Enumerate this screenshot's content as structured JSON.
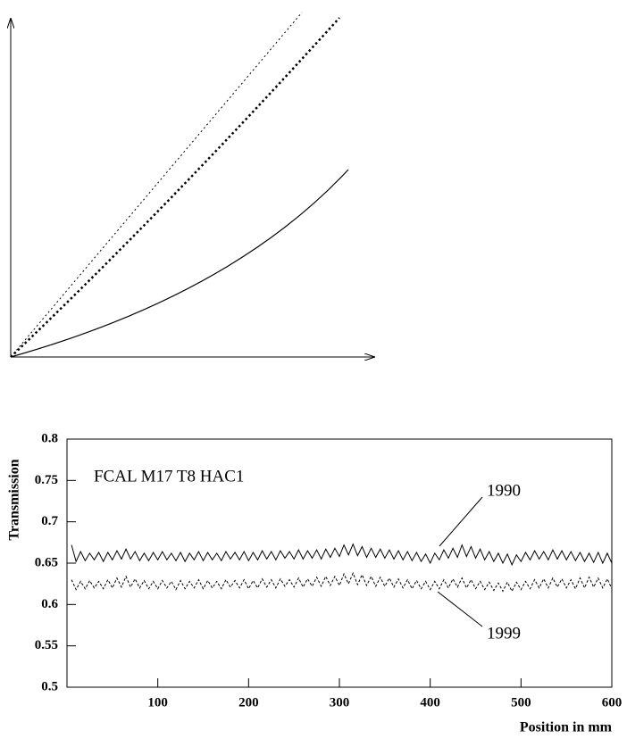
{
  "chart_data": {
    "type": "line",
    "annotation": "FCAL M17 T8 HAC1",
    "ylabel": "Transmission",
    "xlabel": "Position in mm",
    "xlim": [
      0,
      600
    ],
    "xticks": [
      100,
      200,
      300,
      400,
      500,
      600
    ],
    "ylim": [
      0.5,
      0.8
    ],
    "yticks": [
      0.5,
      0.55,
      0.6,
      0.65,
      0.7,
      0.75,
      0.8
    ],
    "x": [
      5,
      10,
      15,
      20,
      25,
      30,
      35,
      40,
      45,
      50,
      55,
      60,
      65,
      70,
      75,
      80,
      85,
      90,
      95,
      100,
      105,
      110,
      115,
      120,
      125,
      130,
      135,
      140,
      145,
      150,
      155,
      160,
      165,
      170,
      175,
      180,
      185,
      190,
      195,
      200,
      205,
      210,
      215,
      220,
      225,
      230,
      235,
      240,
      245,
      250,
      255,
      260,
      265,
      270,
      275,
      280,
      285,
      290,
      295,
      300,
      305,
      310,
      315,
      320,
      325,
      330,
      335,
      340,
      345,
      350,
      355,
      360,
      365,
      370,
      375,
      380,
      385,
      390,
      395,
      400,
      405,
      410,
      415,
      420,
      425,
      430,
      435,
      440,
      445,
      450,
      455,
      460,
      465,
      470,
      475,
      480,
      485,
      490,
      495,
      500,
      505,
      510,
      515,
      520,
      525,
      530,
      535,
      540,
      545,
      550,
      555,
      560,
      565,
      570,
      575,
      580,
      585,
      590,
      595,
      600
    ],
    "series": [
      {
        "name": "1990",
        "color": "#000000",
        "dashed": false,
        "values": [
          0.672,
          0.652,
          0.664,
          0.653,
          0.662,
          0.654,
          0.663,
          0.652,
          0.663,
          0.654,
          0.665,
          0.655,
          0.667,
          0.655,
          0.664,
          0.653,
          0.662,
          0.653,
          0.663,
          0.654,
          0.664,
          0.654,
          0.662,
          0.653,
          0.663,
          0.652,
          0.662,
          0.654,
          0.664,
          0.653,
          0.663,
          0.654,
          0.662,
          0.653,
          0.664,
          0.655,
          0.663,
          0.654,
          0.664,
          0.653,
          0.663,
          0.654,
          0.665,
          0.655,
          0.664,
          0.654,
          0.665,
          0.656,
          0.664,
          0.655,
          0.666,
          0.655,
          0.665,
          0.656,
          0.666,
          0.655,
          0.667,
          0.657,
          0.668,
          0.658,
          0.672,
          0.66,
          0.673,
          0.659,
          0.67,
          0.657,
          0.668,
          0.657,
          0.667,
          0.656,
          0.666,
          0.655,
          0.665,
          0.654,
          0.664,
          0.653,
          0.663,
          0.652,
          0.661,
          0.65,
          0.662,
          0.654,
          0.666,
          0.656,
          0.668,
          0.657,
          0.672,
          0.658,
          0.67,
          0.656,
          0.667,
          0.654,
          0.664,
          0.652,
          0.662,
          0.65,
          0.661,
          0.648,
          0.66,
          0.652,
          0.663,
          0.654,
          0.665,
          0.655,
          0.664,
          0.654,
          0.666,
          0.655,
          0.665,
          0.654,
          0.664,
          0.653,
          0.663,
          0.652,
          0.662,
          0.651,
          0.663,
          0.65,
          0.662,
          0.65
        ]
      },
      {
        "name": "1999",
        "color": "#000000",
        "dashed": true,
        "values": [
          0.63,
          0.618,
          0.628,
          0.619,
          0.629,
          0.62,
          0.628,
          0.619,
          0.63,
          0.62,
          0.632,
          0.621,
          0.634,
          0.621,
          0.631,
          0.62,
          0.629,
          0.619,
          0.628,
          0.619,
          0.629,
          0.62,
          0.628,
          0.618,
          0.629,
          0.619,
          0.628,
          0.62,
          0.63,
          0.619,
          0.629,
          0.62,
          0.628,
          0.619,
          0.63,
          0.621,
          0.629,
          0.62,
          0.63,
          0.619,
          0.629,
          0.62,
          0.631,
          0.621,
          0.63,
          0.62,
          0.631,
          0.622,
          0.63,
          0.621,
          0.632,
          0.621,
          0.631,
          0.622,
          0.633,
          0.622,
          0.634,
          0.623,
          0.634,
          0.623,
          0.637,
          0.625,
          0.638,
          0.624,
          0.636,
          0.623,
          0.634,
          0.622,
          0.633,
          0.622,
          0.632,
          0.621,
          0.631,
          0.62,
          0.63,
          0.619,
          0.629,
          0.619,
          0.628,
          0.618,
          0.628,
          0.619,
          0.63,
          0.62,
          0.631,
          0.621,
          0.632,
          0.62,
          0.63,
          0.619,
          0.628,
          0.618,
          0.627,
          0.617,
          0.626,
          0.616,
          0.627,
          0.616,
          0.627,
          0.618,
          0.628,
          0.619,
          0.63,
          0.62,
          0.631,
          0.62,
          0.632,
          0.621,
          0.631,
          0.62,
          0.63,
          0.619,
          0.632,
          0.62,
          0.633,
          0.621,
          0.632,
          0.62,
          0.631,
          0.619
        ]
      }
    ]
  }
}
